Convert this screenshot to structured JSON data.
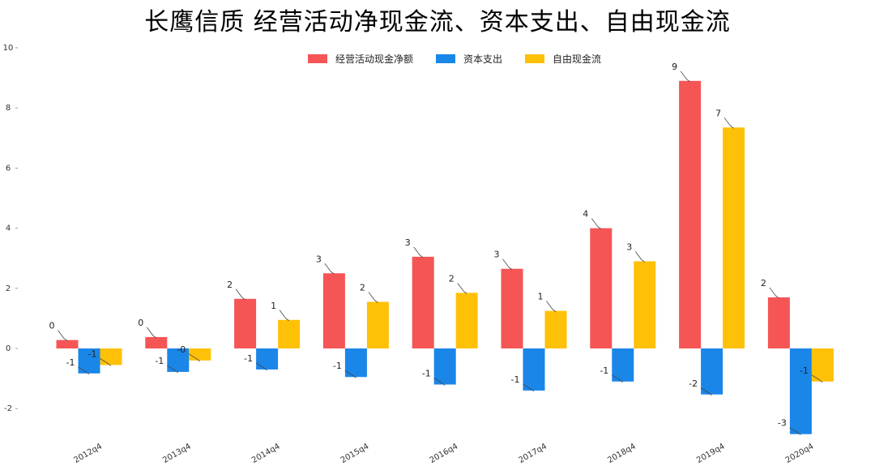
{
  "chart_data": {
    "type": "bar",
    "title": "长鹰信质  经营活动净现金流、资本支出、自由现金流",
    "xlabel": "",
    "ylabel": "",
    "ylim": [
      -2.9,
      10
    ],
    "yticks": [
      -2,
      0,
      2,
      4,
      6,
      8,
      10
    ],
    "grid": false,
    "legend_position": "top-center",
    "categories": [
      "2012q4",
      "2013q4",
      "2014q4",
      "2015q4",
      "2016q4",
      "2017q4",
      "2018q4",
      "2019q4",
      "2020q4"
    ],
    "series": [
      {
        "name": "经营活动现金净额",
        "color": "#f55555",
        "values": [
          0.28,
          0.38,
          1.65,
          2.5,
          3.05,
          2.65,
          4.0,
          8.9,
          1.7
        ],
        "labels": [
          "0",
          "0",
          "2",
          "3",
          "3",
          "3",
          "4",
          "9",
          "2"
        ]
      },
      {
        "name": "资本支出",
        "color": "#1a86e8",
        "values": [
          -0.83,
          -0.78,
          -0.7,
          -0.95,
          -1.2,
          -1.4,
          -1.1,
          -1.53,
          -2.85
        ],
        "labels": [
          "-1",
          "-1",
          "-1",
          "-1",
          "-1",
          "-1",
          "-1",
          "-2",
          "-3"
        ]
      },
      {
        "name": "自由现金流",
        "color": "#ffc107",
        "values": [
          -0.55,
          -0.4,
          0.95,
          1.55,
          1.85,
          1.25,
          2.9,
          7.35,
          -1.1
        ],
        "labels": [
          "-1",
          "-0",
          "1",
          "2",
          "2",
          "1",
          "3",
          "7",
          "-1"
        ]
      }
    ]
  }
}
